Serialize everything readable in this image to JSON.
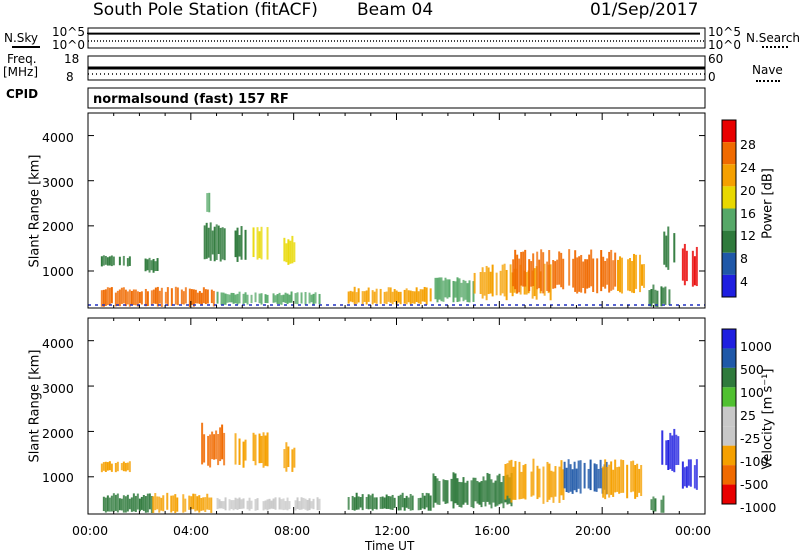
{
  "header": {
    "station": "South Pole Station (fitACF)",
    "beam": "Beam 04",
    "date": "01/Sep/2017"
  },
  "strip_panels": {
    "nsky_label": "N.Sky",
    "nsky_ticks": [
      "10^5",
      "10^0"
    ],
    "nsearch_label": "N.Search",
    "nsearch_ticks": [
      "10^5",
      "10^0"
    ],
    "freq_label": "Freq.",
    "freq_unit": "[MHz]",
    "freq_ticks": [
      "18",
      "8"
    ],
    "nave_label": "Nave",
    "nave_ticks": [
      "60",
      "0"
    ],
    "cpid_label": "CPID",
    "cpid_value": "normalsound (fast) 157 RF"
  },
  "colors": {
    "power_scale": [
      "#1f1fe0",
      "#1f58a8",
      "#2f7a3c",
      "#56a868",
      "#e8d800",
      "#f5a000",
      "#f06a00",
      "#e80000"
    ],
    "velocity_scale": [
      "#e80000",
      "#f06a00",
      "#f5a000",
      "#c8c8c8",
      "#c8c8c8",
      "#50c030",
      "#2f7a3c",
      "#1f58a8",
      "#1f1fe0"
    ]
  },
  "chart_data": [
    {
      "type": "heatmap",
      "panel": "power",
      "ylabel": "Slant Range [km]",
      "yticks": [
        "1000",
        "2000",
        "3000",
        "4000"
      ],
      "ylim": [
        180,
        4500
      ],
      "xticks": [
        "00:00",
        "04:00",
        "08:00",
        "12:00",
        "16:00",
        "20:00",
        "00:00"
      ],
      "xlim": [
        0,
        24
      ],
      "colorbar_label": "Power [dB]",
      "colorbar_ticks": [
        "4",
        "8",
        "12",
        "16",
        "20",
        "24",
        "28"
      ],
      "colorbar_range": [
        0,
        30
      ],
      "regions": [
        {
          "t0": 0.5,
          "t1": 4.9,
          "r0": 200,
          "r1": 650,
          "level": 24
        },
        {
          "t0": 0.5,
          "t1": 1.6,
          "r0": 1100,
          "r1": 1350,
          "level": 8
        },
        {
          "t0": 2.2,
          "t1": 2.7,
          "r0": 950,
          "r1": 1300,
          "level": 10
        },
        {
          "t0": 4.5,
          "t1": 5.3,
          "r0": 1200,
          "r1": 2100,
          "level": 8
        },
        {
          "t0": 4.6,
          "t1": 4.9,
          "r0": 2300,
          "r1": 2800,
          "level": 12
        },
        {
          "t0": 5.7,
          "t1": 6.1,
          "r0": 1200,
          "r1": 2000,
          "level": 10
        },
        {
          "t0": 6.4,
          "t1": 7.0,
          "r0": 1200,
          "r1": 2000,
          "level": 16
        },
        {
          "t0": 7.6,
          "t1": 8.0,
          "r0": 1100,
          "r1": 1800,
          "level": 18
        },
        {
          "t0": 5.0,
          "t1": 9.0,
          "r0": 250,
          "r1": 550,
          "level": 12
        },
        {
          "t0": 10.1,
          "t1": 13.3,
          "r0": 250,
          "r1": 650,
          "level": 22
        },
        {
          "t0": 13.4,
          "t1": 15.0,
          "r0": 300,
          "r1": 900,
          "level": 14
        },
        {
          "t0": 15.0,
          "t1": 18.0,
          "r0": 350,
          "r1": 1200,
          "level": 22
        },
        {
          "t0": 16.5,
          "t1": 20.5,
          "r0": 500,
          "r1": 1500,
          "level": 26
        },
        {
          "t0": 20.5,
          "t1": 21.6,
          "r0": 500,
          "r1": 1400,
          "level": 20
        },
        {
          "t0": 21.8,
          "t1": 22.6,
          "r0": 200,
          "r1": 700,
          "level": 10
        },
        {
          "t0": 22.3,
          "t1": 23.0,
          "r0": 1000,
          "r1": 2100,
          "level": 8
        },
        {
          "t0": 23.1,
          "t1": 23.7,
          "r0": 600,
          "r1": 1600,
          "level": 28
        }
      ]
    },
    {
      "type": "heatmap",
      "panel": "velocity",
      "ylabel": "Slant Range [km]",
      "yticks": [
        "1000",
        "2000",
        "3000",
        "4000"
      ],
      "ylim": [
        180,
        4500
      ],
      "xticks": [
        "00:00",
        "04:00",
        "08:00",
        "12:00",
        "16:00",
        "20:00",
        "00:00"
      ],
      "xlim": [
        0,
        24
      ],
      "xlabel": "Time UT",
      "colorbar_label": "Velocity [m s⁻¹]",
      "colorbar_ticks": [
        "1000",
        "500",
        "100",
        "25",
        "-25",
        "-100",
        "-500",
        "-1000"
      ],
      "regions": [
        {
          "t0": 0.5,
          "t1": 2.5,
          "r0": 200,
          "r1": 650,
          "level": 100
        },
        {
          "t0": 2.5,
          "t1": 4.8,
          "r0": 200,
          "r1": 650,
          "level": -100
        },
        {
          "t0": 0.5,
          "t1": 1.6,
          "r0": 1100,
          "r1": 1350,
          "level": -100
        },
        {
          "t0": 4.4,
          "t1": 5.3,
          "r0": 1200,
          "r1": 2200,
          "level": -500
        },
        {
          "t0": 5.7,
          "t1": 6.1,
          "r0": 1200,
          "r1": 2000,
          "level": -100
        },
        {
          "t0": 6.4,
          "t1": 7.0,
          "r0": 1200,
          "r1": 2000,
          "level": -100
        },
        {
          "t0": 7.6,
          "t1": 8.0,
          "r0": 1100,
          "r1": 1800,
          "level": -100
        },
        {
          "t0": 5.0,
          "t1": 9.0,
          "r0": 250,
          "r1": 550,
          "level": 0
        },
        {
          "t0": 10.1,
          "t1": 13.3,
          "r0": 250,
          "r1": 650,
          "level": 100
        },
        {
          "t0": 13.4,
          "t1": 16.5,
          "r0": 300,
          "r1": 1100,
          "level": 100
        },
        {
          "t0": 16.2,
          "t1": 18.5,
          "r0": 400,
          "r1": 1400,
          "level": -100
        },
        {
          "t0": 18.5,
          "t1": 20.2,
          "r0": 600,
          "r1": 1400,
          "level": 500
        },
        {
          "t0": 20.0,
          "t1": 21.5,
          "r0": 500,
          "r1": 1400,
          "level": -100
        },
        {
          "t0": 21.8,
          "t1": 22.4,
          "r0": 200,
          "r1": 600,
          "level": 100
        },
        {
          "t0": 22.3,
          "t1": 23.0,
          "r0": 1100,
          "r1": 2100,
          "level": 1000
        },
        {
          "t0": 23.1,
          "t1": 23.7,
          "r0": 700,
          "r1": 1400,
          "level": 1000
        }
      ]
    }
  ]
}
